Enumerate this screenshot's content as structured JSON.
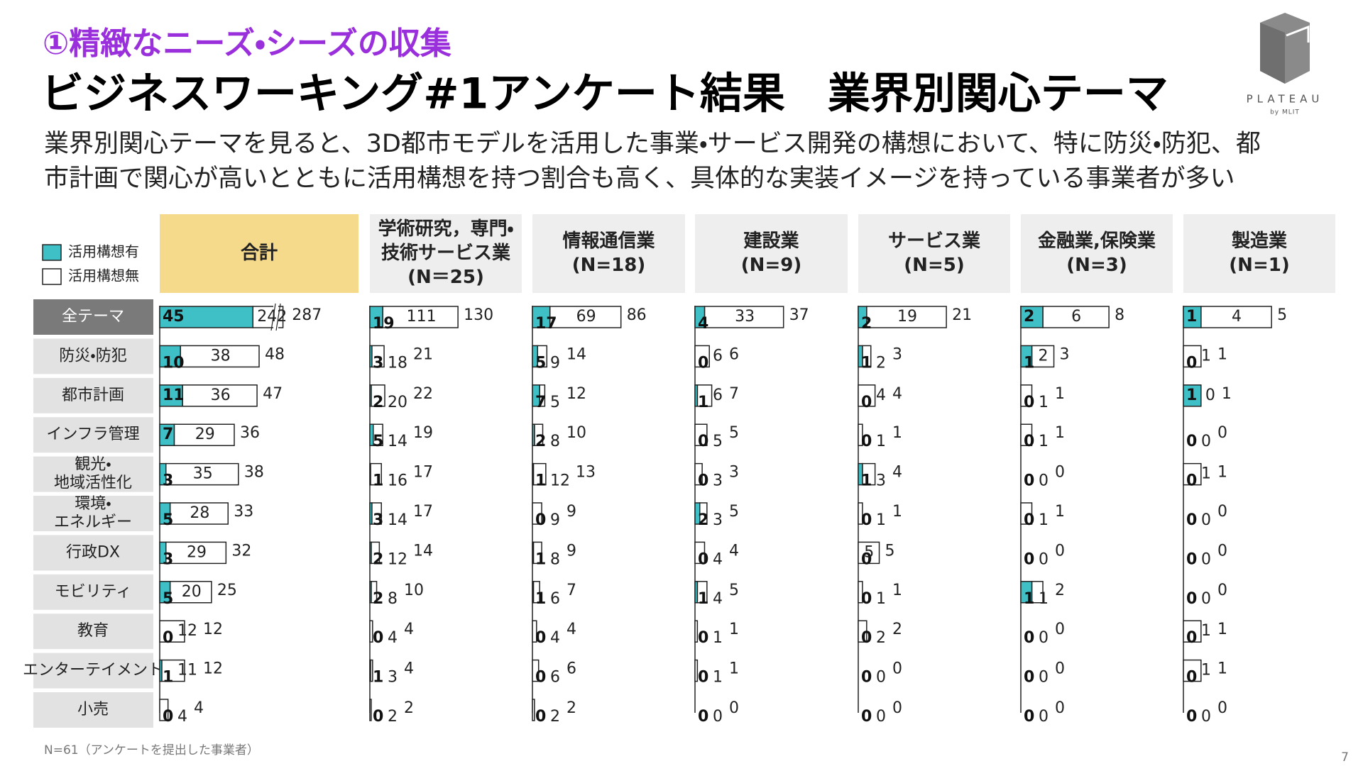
{
  "header": {
    "subtitle": "①精緻なニーズ・シーズの収集",
    "title": "ビジネスワーキング#1アンケート結果　業界別関心テーマ",
    "description": [
      "業界別関心テーマを見ると、3D都市モデルを活用した事業・サービス開発の構想において、特に防災・防犯、都",
      "市計画で関心が高いとともに活用構想を持つ割合も高く、具体的な実装イメージを持っている事業者が多い"
    ]
  },
  "logo": {
    "text": "PLATEAU",
    "sub": "by MLIT"
  },
  "footnote": "N=61（アンケートを提出した事業者）",
  "page_number": "7",
  "chart_data": {
    "type": "bar",
    "orientation": "horizontal",
    "stacked": true,
    "series": [
      {
        "name": "活用構想有",
        "color": "#3ec0c6"
      },
      {
        "name": "活用構想無",
        "color": "#ffffff"
      }
    ],
    "themes": [
      [
        "全テーマ"
      ],
      [
        "防災・防犯"
      ],
      [
        "都市計画"
      ],
      [
        "インフラ管理"
      ],
      [
        "観光・",
        "地域活性化"
      ],
      [
        "環境・",
        "エネルギー"
      ],
      [
        "行政DX"
      ],
      [
        "モビリティ"
      ],
      [
        "教育"
      ],
      [
        "エンターテイメント"
      ],
      [
        "小売"
      ]
    ],
    "panels": [
      {
        "title": [
          "合計"
        ],
        "color": "#f6da8c",
        "axis_break": true,
        "with": [
          45,
          10,
          11,
          7,
          3,
          5,
          3,
          5,
          0,
          1,
          0
        ],
        "without": [
          242,
          38,
          36,
          29,
          35,
          28,
          29,
          20,
          12,
          11,
          4
        ],
        "totals": [
          287,
          48,
          47,
          36,
          38,
          33,
          32,
          25,
          12,
          12,
          4
        ]
      },
      {
        "title": [
          "学術研究，専門・",
          "技術サービス業",
          "(N＝25)"
        ],
        "color": "#eeeeee",
        "axis_break": false,
        "with": [
          19,
          3,
          2,
          5,
          1,
          3,
          2,
          2,
          0,
          1,
          0
        ],
        "without": [
          111,
          18,
          20,
          14,
          16,
          14,
          12,
          8,
          4,
          3,
          2
        ],
        "totals": [
          130,
          21,
          22,
          19,
          17,
          17,
          14,
          10,
          4,
          4,
          2
        ]
      },
      {
        "title": [
          "情報通信業",
          "(N=18)"
        ],
        "color": "#eeeeee",
        "axis_break": false,
        "with": [
          17,
          5,
          7,
          2,
          1,
          0,
          1,
          1,
          0,
          0,
          0
        ],
        "without": [
          69,
          9,
          5,
          8,
          12,
          9,
          8,
          6,
          4,
          6,
          2
        ],
        "totals": [
          86,
          14,
          12,
          10,
          13,
          9,
          9,
          7,
          4,
          6,
          2
        ]
      },
      {
        "title": [
          "建設業",
          "(N=9)"
        ],
        "color": "#eeeeee",
        "axis_break": false,
        "with": [
          4,
          0,
          1,
          0,
          0,
          2,
          0,
          1,
          0,
          0,
          0
        ],
        "without": [
          33,
          6,
          6,
          5,
          3,
          3,
          4,
          4,
          1,
          1,
          0
        ],
        "totals": [
          37,
          6,
          7,
          5,
          3,
          5,
          4,
          5,
          1,
          1,
          0
        ]
      },
      {
        "title": [
          "サービス業",
          "(N=5)"
        ],
        "color": "#eeeeee",
        "axis_break": false,
        "with": [
          2,
          1,
          0,
          0,
          1,
          0,
          0,
          0,
          0,
          0,
          0
        ],
        "without": [
          19,
          2,
          4,
          1,
          3,
          1,
          5,
          1,
          2,
          0,
          0
        ],
        "totals": [
          21,
          3,
          4,
          1,
          4,
          1,
          5,
          1,
          2,
          0,
          0
        ]
      },
      {
        "title": [
          "金融業,保険業",
          "(N=3)"
        ],
        "color": "#eeeeee",
        "axis_break": false,
        "with": [
          2,
          1,
          0,
          0,
          0,
          0,
          0,
          1,
          0,
          0,
          0
        ],
        "without": [
          6,
          2,
          1,
          1,
          0,
          1,
          0,
          1,
          0,
          0,
          0
        ],
        "totals": [
          8,
          3,
          1,
          1,
          0,
          1,
          0,
          2,
          0,
          0,
          0
        ]
      },
      {
        "title": [
          "製造業",
          "(N=1)"
        ],
        "color": "#eeeeee",
        "axis_break": false,
        "with": [
          1,
          0,
          1,
          0,
          0,
          0,
          0,
          0,
          0,
          0,
          0
        ],
        "without": [
          4,
          1,
          0,
          0,
          1,
          0,
          0,
          0,
          1,
          1,
          0
        ],
        "totals": [
          5,
          1,
          1,
          0,
          1,
          0,
          0,
          0,
          1,
          1,
          0
        ]
      }
    ]
  }
}
